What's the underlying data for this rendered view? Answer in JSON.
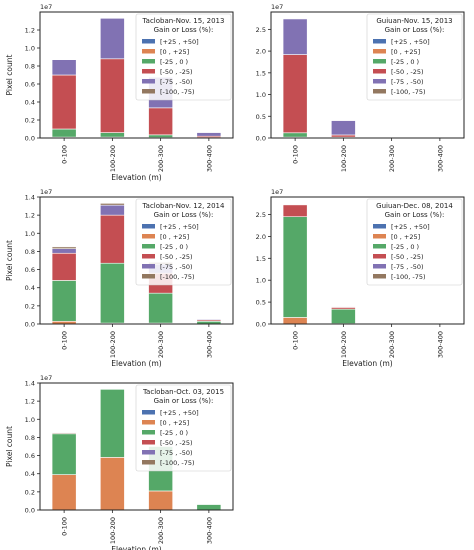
{
  "figure": {
    "colors": {
      "plus25_50": "#4c72b0",
      "0_25": "#dd8452",
      "m25_0": "#55a868",
      "m50_m25": "#c44e52",
      "m75_m50": "#8172b3",
      "m100_m75": "#937860"
    }
  },
  "chart_data": [
    {
      "type": "bar",
      "stacked": true,
      "categories": [
        "0-100",
        "100-200",
        "200-300",
        "300-400"
      ],
      "xlabel": "Elevation (m)",
      "ylabel": "Pixel count",
      "exponent": "1e7",
      "ylim": [
        0,
        1.4
      ],
      "yticks": [
        "0.0",
        "0.2",
        "0.4",
        "0.6",
        "0.8",
        "1.0",
        "1.2"
      ],
      "legend": {
        "title_line1": "Tacloban-Nov. 15, 2013",
        "title_line2": "Gain or Loss (%):",
        "position": "upper-right"
      },
      "series": [
        {
          "name": "[+25 , +50]",
          "color": "#4c72b0",
          "values": [
            0,
            0,
            0,
            0
          ]
        },
        {
          "name": "[0    , +25]",
          "color": "#dd8452",
          "values": [
            0.01,
            0.01,
            0.005,
            0
          ]
        },
        {
          "name": "[-25 , 0    )",
          "color": "#55a868",
          "values": [
            0.09,
            0.05,
            0.03,
            0.005
          ]
        },
        {
          "name": "[-50 , -25)",
          "color": "#c44e52",
          "values": [
            0.6,
            0.82,
            0.3,
            0.015
          ]
        },
        {
          "name": "[-75 , -50)",
          "color": "#8172b3",
          "values": [
            0.17,
            0.45,
            0.34,
            0.04
          ]
        },
        {
          "name": "[-100, -75)",
          "color": "#937860",
          "values": [
            0,
            0,
            0,
            0
          ]
        }
      ]
    },
    {
      "type": "bar",
      "stacked": true,
      "categories": [
        "0-100",
        "100-200",
        "200-300",
        "300-400"
      ],
      "xlabel": "",
      "ylabel": "",
      "exponent": "1e7",
      "ylim": [
        0,
        2.9
      ],
      "yticks": [
        "0.0",
        "0.5",
        "1.0",
        "1.5",
        "2.0",
        "2.5"
      ],
      "legend": {
        "title_line1": "Guiuan-Nov. 15, 2013",
        "title_line2": "Gain or Loss (%):",
        "position": "upper-right"
      },
      "series": [
        {
          "name": "[+25 , +50]",
          "color": "#4c72b0",
          "values": [
            0,
            0,
            0,
            0
          ]
        },
        {
          "name": "[0    , +25]",
          "color": "#dd8452",
          "values": [
            0.02,
            0,
            0,
            0
          ]
        },
        {
          "name": "[-25 , 0    )",
          "color": "#55a868",
          "values": [
            0.1,
            0.02,
            0,
            0
          ]
        },
        {
          "name": "[-50 , -25)",
          "color": "#c44e52",
          "values": [
            1.8,
            0.05,
            0,
            0
          ]
        },
        {
          "name": "[-75 , -50)",
          "color": "#8172b3",
          "values": [
            0.82,
            0.33,
            0,
            0
          ]
        },
        {
          "name": "[-100, -75)",
          "color": "#937860",
          "values": [
            0,
            0,
            0,
            0
          ]
        }
      ]
    },
    {
      "type": "bar",
      "stacked": true,
      "categories": [
        "0-100",
        "100-200",
        "200-300",
        "300-400"
      ],
      "xlabel": "Elevation (m)",
      "ylabel": "Pixel count",
      "exponent": "1e7",
      "ylim": [
        0,
        1.4
      ],
      "yticks": [
        "0.0",
        "0.2",
        "0.4",
        "0.6",
        "0.8",
        "1.0",
        "1.2",
        "1.4"
      ],
      "legend": {
        "title_line1": "Tacloban-Nov. 12, 2014",
        "title_line2": "Gain or Loss (%):",
        "position": "upper-right"
      },
      "series": [
        {
          "name": "[+25 , +50]",
          "color": "#4c72b0",
          "values": [
            0,
            0,
            0,
            0
          ]
        },
        {
          "name": "[0    , +25]",
          "color": "#dd8452",
          "values": [
            0.03,
            0.01,
            0.01,
            0
          ]
        },
        {
          "name": "[-25 , 0    )",
          "color": "#55a868",
          "values": [
            0.45,
            0.66,
            0.33,
            0.03
          ]
        },
        {
          "name": "[-50 , -25)",
          "color": "#c44e52",
          "values": [
            0.3,
            0.53,
            0.22,
            0.015
          ]
        },
        {
          "name": "[-75 , -50)",
          "color": "#8172b3",
          "values": [
            0.05,
            0.11,
            0.1,
            0.01
          ]
        },
        {
          "name": "[-100, -75)",
          "color": "#937860",
          "values": [
            0.02,
            0.02,
            0.02,
            0.005
          ]
        }
      ]
    },
    {
      "type": "bar",
      "stacked": true,
      "categories": [
        "0-100",
        "100-200",
        "200-300",
        "300-400"
      ],
      "xlabel": "Elevation (m)",
      "ylabel": "",
      "exponent": "1e7",
      "ylim": [
        0,
        2.9
      ],
      "yticks": [
        "0.0",
        "0.5",
        "1.0",
        "1.5",
        "2.0",
        "2.5"
      ],
      "legend": {
        "title_line1": "Guiuan-Dec. 08, 2014",
        "title_line2": "Gain or Loss (%):",
        "position": "upper-right"
      },
      "series": [
        {
          "name": "[+25 , +50]",
          "color": "#4c72b0",
          "values": [
            0,
            0,
            0,
            0
          ]
        },
        {
          "name": "[0    , +25]",
          "color": "#dd8452",
          "values": [
            0.15,
            0.01,
            0,
            0
          ]
        },
        {
          "name": "[-25 , 0    )",
          "color": "#55a868",
          "values": [
            2.3,
            0.33,
            0,
            0
          ]
        },
        {
          "name": "[-50 , -25)",
          "color": "#c44e52",
          "values": [
            0.27,
            0.04,
            0,
            0
          ]
        },
        {
          "name": "[-75 , -50)",
          "color": "#8172b3",
          "values": [
            0,
            0.01,
            0,
            0
          ]
        },
        {
          "name": "[-100, -75)",
          "color": "#937860",
          "values": [
            0,
            0,
            0,
            0
          ]
        }
      ]
    },
    {
      "type": "bar",
      "stacked": true,
      "categories": [
        "0-100",
        "100-200",
        "200-300",
        "300-400"
      ],
      "xlabel": "Elevation (m)",
      "ylabel": "Pixel count",
      "exponent": "1e7",
      "ylim": [
        0,
        1.4
      ],
      "yticks": [
        "0.0",
        "0.2",
        "0.4",
        "0.6",
        "0.8",
        "1.0",
        "1.2",
        "1.4"
      ],
      "legend": {
        "title_line1": "Tacloban-Oct. 03, 2015",
        "title_line2": "Gain or Loss (%):",
        "position": "upper-right"
      },
      "series": [
        {
          "name": "[+25 , +50]",
          "color": "#4c72b0",
          "values": [
            0,
            0,
            0,
            0
          ]
        },
        {
          "name": "[0    , +25]",
          "color": "#dd8452",
          "values": [
            0.39,
            0.58,
            0.21,
            0
          ]
        },
        {
          "name": "[-25 , 0    )",
          "color": "#55a868",
          "values": [
            0.45,
            0.75,
            0.49,
            0.06
          ]
        },
        {
          "name": "[-50 , -25)",
          "color": "#c44e52",
          "values": [
            0,
            0,
            0,
            0
          ]
        },
        {
          "name": "[-75 , -50)",
          "color": "#8172b3",
          "values": [
            0,
            0,
            0,
            0
          ]
        },
        {
          "name": "[-100, -75)",
          "color": "#937860",
          "values": [
            0.01,
            0,
            0,
            0
          ]
        }
      ]
    }
  ]
}
